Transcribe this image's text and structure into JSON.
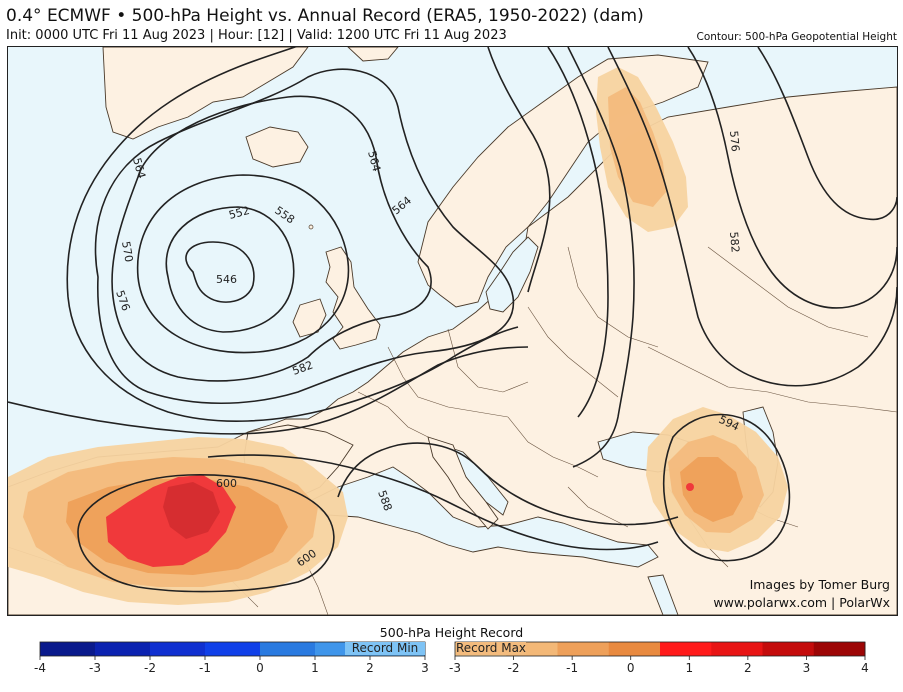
{
  "header": {
    "title": "0.4° ECMWF • 500-hPa Height vs. Annual Record (ERA5, 1950-2022) (dam)",
    "subtitle": "Init: 0000 UTC Fri 11 Aug 2023 | Hour: [12] | Valid: 1200 UTC Fri 11 Aug 2023",
    "contour_note": "Contour: 500-hPa Geopotential Height"
  },
  "map": {
    "contour_labels": [
      "564",
      "570",
      "576",
      "552",
      "558",
      "546",
      "564",
      "564",
      "576",
      "582",
      "582",
      "594",
      "600",
      "600",
      "588"
    ],
    "credit_line1": "Images by Tomer Burg",
    "credit_line2": "www.polarwx.com | PolarWx"
  },
  "legend": {
    "title": "500-hPa Height Record",
    "min_label": "Record Min",
    "max_label": "Record Max",
    "min_ticks": [
      "-4",
      "-3",
      "-2",
      "-1",
      "0",
      "1",
      "2",
      "3"
    ],
    "max_ticks": [
      "-3",
      "-2",
      "-1",
      "0",
      "1",
      "2",
      "3",
      "4"
    ],
    "colors": {
      "min_bar": [
        "#0a1a8c",
        "#0b22b0",
        "#1030d0",
        "#1040e8",
        "#2a7ae0",
        "#3f95ea",
        "#59aaf0"
      ],
      "max_bar": [
        "#f7cf98",
        "#f3b877",
        "#eea05a",
        "#e98a40",
        "#ff1a1a",
        "#e81414",
        "#c40c0c",
        "#9c0505"
      ]
    }
  }
}
